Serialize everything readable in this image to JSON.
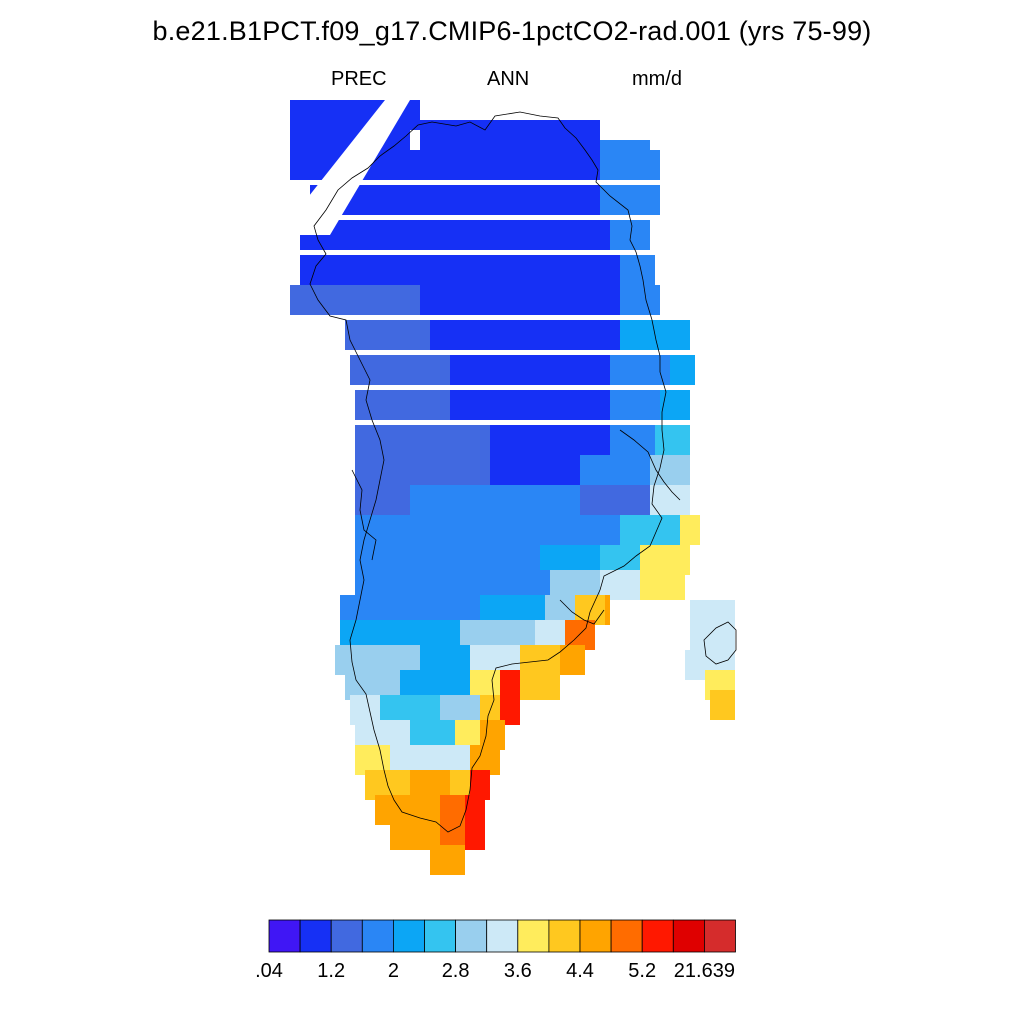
{
  "title": "b.e21.B1PCT.f09_g17.CMIP6-1pctCO2-rad.001 (yrs 75-99)",
  "left_string": "PREC",
  "center_string": "ANN",
  "right_string": "mm/d",
  "colorbar": {
    "colors": [
      "#4016f5",
      "#1630f5",
      "#4169e0",
      "#2a86f5",
      "#0ca6f5",
      "#34c4f0",
      "#99cfee",
      "#cde9f7",
      "#ffec5c",
      "#ffc81f",
      "#ffa400",
      "#ff6c00",
      "#ff1800",
      "#df0000",
      "#d52c2c"
    ],
    "tick_labels": [
      ".04",
      "1.2",
      "2",
      "2.8",
      "3.6",
      "4.4",
      "5.2",
      "21.639"
    ]
  }
}
